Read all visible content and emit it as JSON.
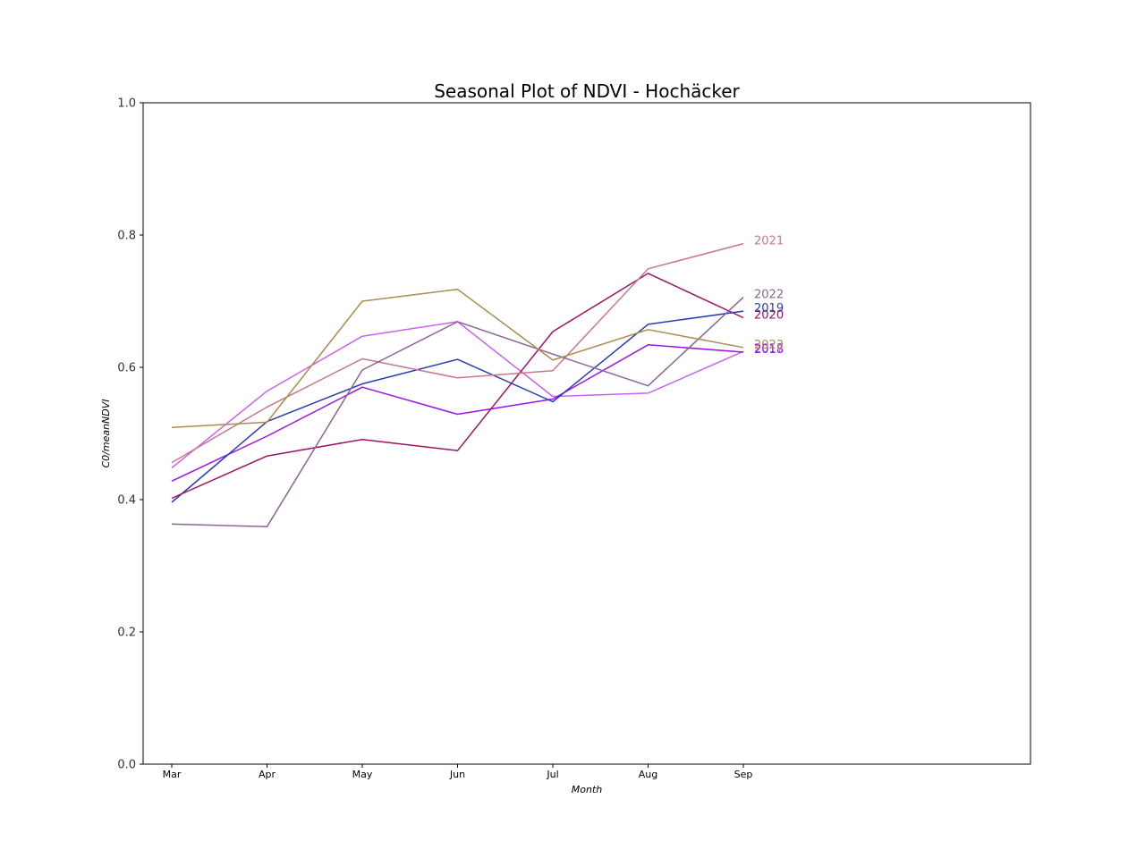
{
  "chart_data": {
    "type": "line",
    "title": "Seasonal Plot of NDVI - Hochäcker",
    "xlabel": "Month",
    "ylabel": "C0/meanNDVI",
    "categories": [
      "Mar",
      "Apr",
      "May",
      "Jun",
      "Jul",
      "Aug",
      "Sep"
    ],
    "ylim": [
      0.0,
      1.0
    ],
    "yticks": [
      "0.0",
      "0.2",
      "0.4",
      "0.6",
      "0.8",
      "1.0"
    ],
    "grid": false,
    "series": [
      {
        "name": "2017",
        "color": "#c864f0",
        "values": [
          0.448,
          0.564,
          0.647,
          0.669,
          0.556,
          0.561,
          0.624
        ]
      },
      {
        "name": "2018",
        "color": "#9b14e6",
        "values": [
          0.428,
          0.496,
          0.57,
          0.529,
          0.552,
          0.634,
          0.623
        ]
      },
      {
        "name": "2019",
        "color": "#2a3cb0",
        "values": [
          0.396,
          0.518,
          0.575,
          0.612,
          0.548,
          0.665,
          0.685
        ]
      },
      {
        "name": "2020",
        "color": "#9b1464",
        "values": [
          0.402,
          0.466,
          0.491,
          0.474,
          0.654,
          0.742,
          0.675
        ]
      },
      {
        "name": "2021",
        "color": "#c8788c",
        "values": [
          0.456,
          0.54,
          0.613,
          0.584,
          0.595,
          0.749,
          0.787
        ]
      },
      {
        "name": "2022",
        "color": "#8c6496",
        "values": [
          0.363,
          0.359,
          0.596,
          0.669,
          0.62,
          0.572,
          0.706
        ]
      },
      {
        "name": "2023",
        "color": "#aa8c50",
        "values": [
          0.509,
          0.517,
          0.7,
          0.718,
          0.611,
          0.657,
          0.63
        ]
      }
    ]
  }
}
